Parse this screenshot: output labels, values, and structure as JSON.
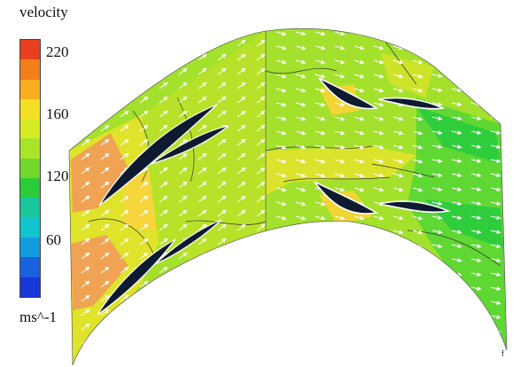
{
  "legend": {
    "title": "velocity",
    "unit": "ms^-1",
    "ticks": [
      "220",
      "160",
      "120",
      "60"
    ],
    "bands": [
      "#e8401e",
      "#f47f18",
      "#f9ae1f",
      "#f5df22",
      "#d5ec25",
      "#a9e426",
      "#72d72a",
      "#2bcc3a",
      "#18c79c",
      "#12c4cc",
      "#139bdf",
      "#1a61e0",
      "#1737d8"
    ]
  },
  "colors": {
    "domain_light": "#9fe130",
    "domain_mid": "#b9e32a",
    "domain_yellow": "#dfe42a",
    "domain_orange": "#f0a52c",
    "domain_green": "#48d336",
    "arrow": "#ffffff",
    "blade": "#111111"
  },
  "corner_text": "f"
}
